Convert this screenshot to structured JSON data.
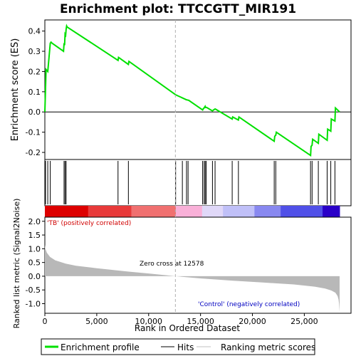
{
  "chart_data": {
    "type": "line",
    "title": "Enrichment plot: TTCCGTT_MIR191",
    "xlabel": "Rank in Ordered Dataset",
    "xlim": [
      0,
      29500
    ],
    "x_ticks": [
      0,
      5000,
      10000,
      15000,
      20000,
      25000
    ],
    "x_tick_labels": [
      "0",
      "5,000",
      "10,000",
      "15,000",
      "20,000",
      "25,000"
    ],
    "panels": {
      "es": {
        "ylabel": "Enrichment score (ES)",
        "ylim": [
          -0.235,
          0.455
        ],
        "y_ticks": [
          -0.2,
          -0.1,
          0.0,
          0.1,
          0.2,
          0.3,
          0.4
        ],
        "y_tick_labels": [
          "-0.2",
          "-0.1",
          "0.0",
          "0.1",
          "0.2",
          "0.3",
          "0.4"
        ],
        "series": [
          {
            "name": "Enrichment profile",
            "color": "#00e000",
            "x": [
              0,
              60,
              120,
              200,
              280,
              420,
              520,
              600,
              700,
              1800,
              1850,
              1900,
              1950,
              2000,
              2050,
              2100,
              2150,
              7050,
              7100,
              8050,
              8100,
              12600,
              13650,
              13700,
              13800,
              13850,
              15200,
              15250,
              15350,
              15450,
              15500,
              15600,
              16150,
              16250,
              16400,
              16500,
              18050,
              18100,
              18650,
              18700,
              22100,
              22150,
              22250,
              22300,
              25600,
              25650,
              25750,
              25800,
              26350,
              26400,
              27200,
              27250,
              27550,
              27600,
              27950,
              28000,
              28400
            ],
            "y": [
              0.0,
              0.11,
              0.21,
              0.205,
              0.2,
              0.28,
              0.34,
              0.345,
              0.34,
              0.3,
              0.34,
              0.33,
              0.385,
              0.38,
              0.41,
              0.425,
              0.42,
              0.255,
              0.27,
              0.235,
              0.25,
              0.085,
              0.06,
              0.06,
              0.058,
              0.058,
              0.01,
              0.015,
              0.02,
              0.028,
              0.022,
              0.022,
              0.005,
              0.01,
              0.015,
              0.012,
              -0.035,
              -0.025,
              -0.04,
              -0.025,
              -0.145,
              -0.12,
              -0.115,
              -0.1,
              -0.215,
              -0.17,
              -0.165,
              -0.135,
              -0.155,
              -0.11,
              -0.14,
              -0.085,
              -0.095,
              -0.035,
              -0.045,
              0.02,
              0.0
            ]
          }
        ]
      },
      "hits": {
        "x": [
          60,
          280,
          520,
          1850,
          1950,
          2050,
          7050,
          8050,
          12600,
          13250,
          13650,
          13800,
          15200,
          15350,
          15450,
          15550,
          16150,
          16400,
          18050,
          18650,
          22100,
          22250,
          25600,
          25750,
          26350,
          27200,
          27550,
          27950
        ]
      },
      "ranking": {
        "ylabel": "Ranked list metric (Signal2Noise)",
        "ylim": [
          -1.35,
          2.15
        ],
        "y_ticks": [
          -1.0,
          -0.5,
          0.0,
          0.5,
          1.0,
          1.5,
          2.0
        ],
        "y_tick_labels": [
          "-1.0",
          "-0.5",
          "0.0",
          "0.5",
          "1.0",
          "1.5",
          "2.0"
        ],
        "curve": {
          "x": [
            0,
            50,
            200,
            500,
            1000,
            2000,
            3000,
            5000,
            8000,
            10000,
            12578,
            15000,
            18000,
            21000,
            24000,
            26000,
            27000,
            27600,
            28000,
            28200,
            28300,
            28350,
            28400
          ],
          "y": [
            1.15,
            1.0,
            0.85,
            0.7,
            0.58,
            0.46,
            0.38,
            0.29,
            0.17,
            0.1,
            0.0,
            -0.08,
            -0.16,
            -0.23,
            -0.3,
            -0.38,
            -0.45,
            -0.52,
            -0.6,
            -0.72,
            -0.85,
            -1.0,
            -1.3
          ]
        },
        "zero_cross_label": "Zero cross at 12578",
        "positive_label": "'TB' (positively correlated)",
        "negative_label": "'Control' (negatively correlated)",
        "positive_label_color": "#d00000",
        "negative_label_color": "#0000c0"
      }
    },
    "legend": {
      "placement": "bottom",
      "items": [
        {
          "label": "Enrichment profile",
          "color": "#00e000",
          "style": "thick-line"
        },
        {
          "label": "Hits",
          "color": "#000000",
          "style": "line"
        },
        {
          "label": "Ranking metric scores",
          "color": "#c0c0c0",
          "style": "line"
        }
      ]
    },
    "heatbar_colors": [
      "#dd0000",
      "#e83a3a",
      "#f07070",
      "#f9b0d8",
      "#e0d8f8",
      "#c0c0f8",
      "#8888f0",
      "#5050e8",
      "#2a00c8"
    ]
  }
}
